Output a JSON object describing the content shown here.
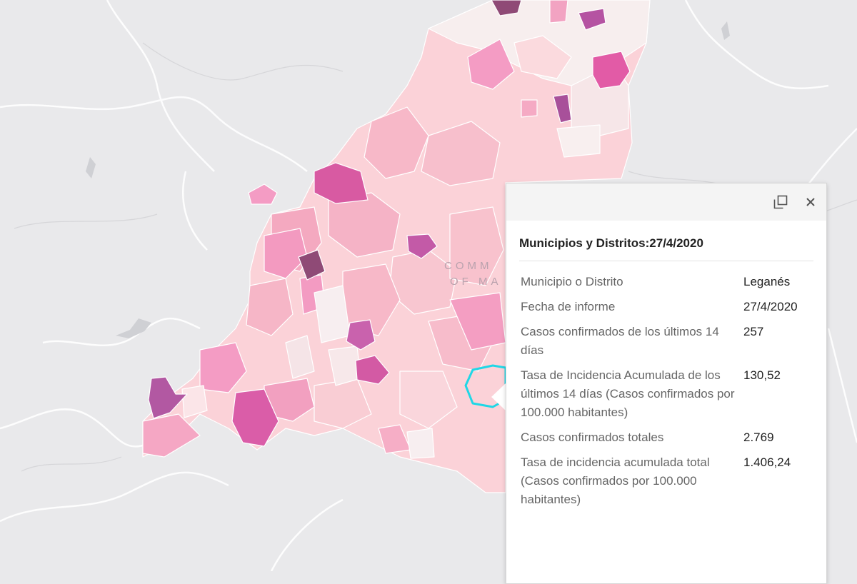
{
  "map": {
    "place_label_line1": "COMM",
    "place_label_line2": "OF MA",
    "colors": {
      "background": "#e9e9eb",
      "very_light": "#f7eeee",
      "light": "#fbd2d8",
      "medium": "#f7b8c8",
      "strong": "#f49cc4",
      "vivid": "#e25ba6",
      "purple": "#b553a2",
      "dark": "#8f4a76",
      "highlight": "#1fd7e6"
    }
  },
  "popup": {
    "title": "Municipios y Distritos:27/4/2020",
    "dock_icon": "dock-icon",
    "close_icon": "close-icon",
    "fields": [
      {
        "label": "Municipio o Distrito",
        "value": "Leganés"
      },
      {
        "label": "Fecha de informe",
        "value": "27/4/2020"
      },
      {
        "label": "Casos confirmados de los últimos 14 días",
        "value": "257"
      },
      {
        "label": "Tasa de Incidencia Acumulada de los últimos 14 días (Casos confirmados por 100.000 habitantes)",
        "value": "130,52"
      },
      {
        "label": "Casos confirmados totales",
        "value": "2.769"
      },
      {
        "label": "Tasa de incidencia acumulada total (Casos confirmados por 100.000 habitantes)",
        "value": "1.406,24"
      }
    ]
  }
}
